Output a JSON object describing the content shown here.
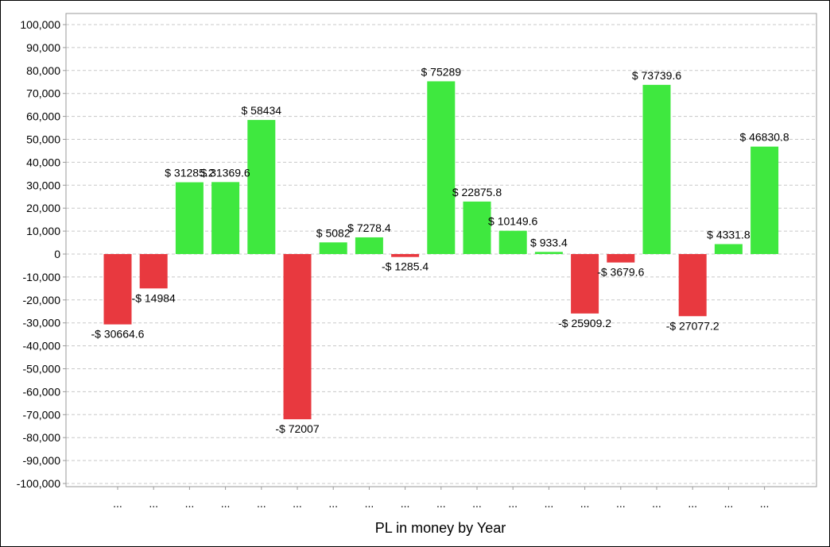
{
  "chart_data": {
    "type": "bar",
    "xlabel": "PL in money by Year",
    "ylabel": "",
    "ylim": [
      -100000,
      100000
    ],
    "y_ticks": [
      100000,
      90000,
      80000,
      70000,
      60000,
      50000,
      40000,
      30000,
      20000,
      10000,
      0,
      -10000,
      -20000,
      -30000,
      -40000,
      -50000,
      -60000,
      -70000,
      -80000,
      -90000,
      -100000
    ],
    "y_tick_labels": [
      "100,000",
      "90,000",
      "80,000",
      "70,000",
      "60,000",
      "50,000",
      "40,000",
      "30,000",
      "20,000",
      "10,000",
      "0",
      "-10,000",
      "-20,000",
      "-30,000",
      "-40,000",
      "-50,000",
      "-60,000",
      "-70,000",
      "-80,000",
      "-90,000",
      "-100,000"
    ],
    "grid": true,
    "categories": [
      "...",
      "...",
      "...",
      "...",
      "...",
      "...",
      "...",
      "...",
      "...",
      "...",
      "...",
      "...",
      "...",
      "...",
      "...",
      "...",
      "...",
      "...",
      "..."
    ],
    "values": [
      -30664.6,
      -14984,
      31285.2,
      31369.6,
      58434,
      -72007,
      5082,
      7278.4,
      -1285.4,
      75289,
      22875.8,
      10149.6,
      933.4,
      -25909.2,
      -3679.6,
      73739.6,
      -27077.2,
      4331.8,
      46830.8
    ],
    "data_labels": [
      "-$ 30664.6",
      "-$ 14984",
      "$ 31285.2",
      "$ 31369.6",
      "$ 58434",
      "-$ 72007",
      "$ 5082",
      "$ 7278.4",
      "-$ 1285.4",
      "$ 75289",
      "$ 22875.8",
      "$ 10149.6",
      "$ 933.4",
      "-$ 25909.2",
      "-$ 3679.6",
      "$ 73739.6",
      "-$ 27077.2",
      "$ 4331.8",
      "$ 46830.8"
    ],
    "colors": {
      "positive": "#3fe83f",
      "negative": "#e8393f",
      "grid": "#c8c8c8",
      "axis": "#999999"
    }
  }
}
